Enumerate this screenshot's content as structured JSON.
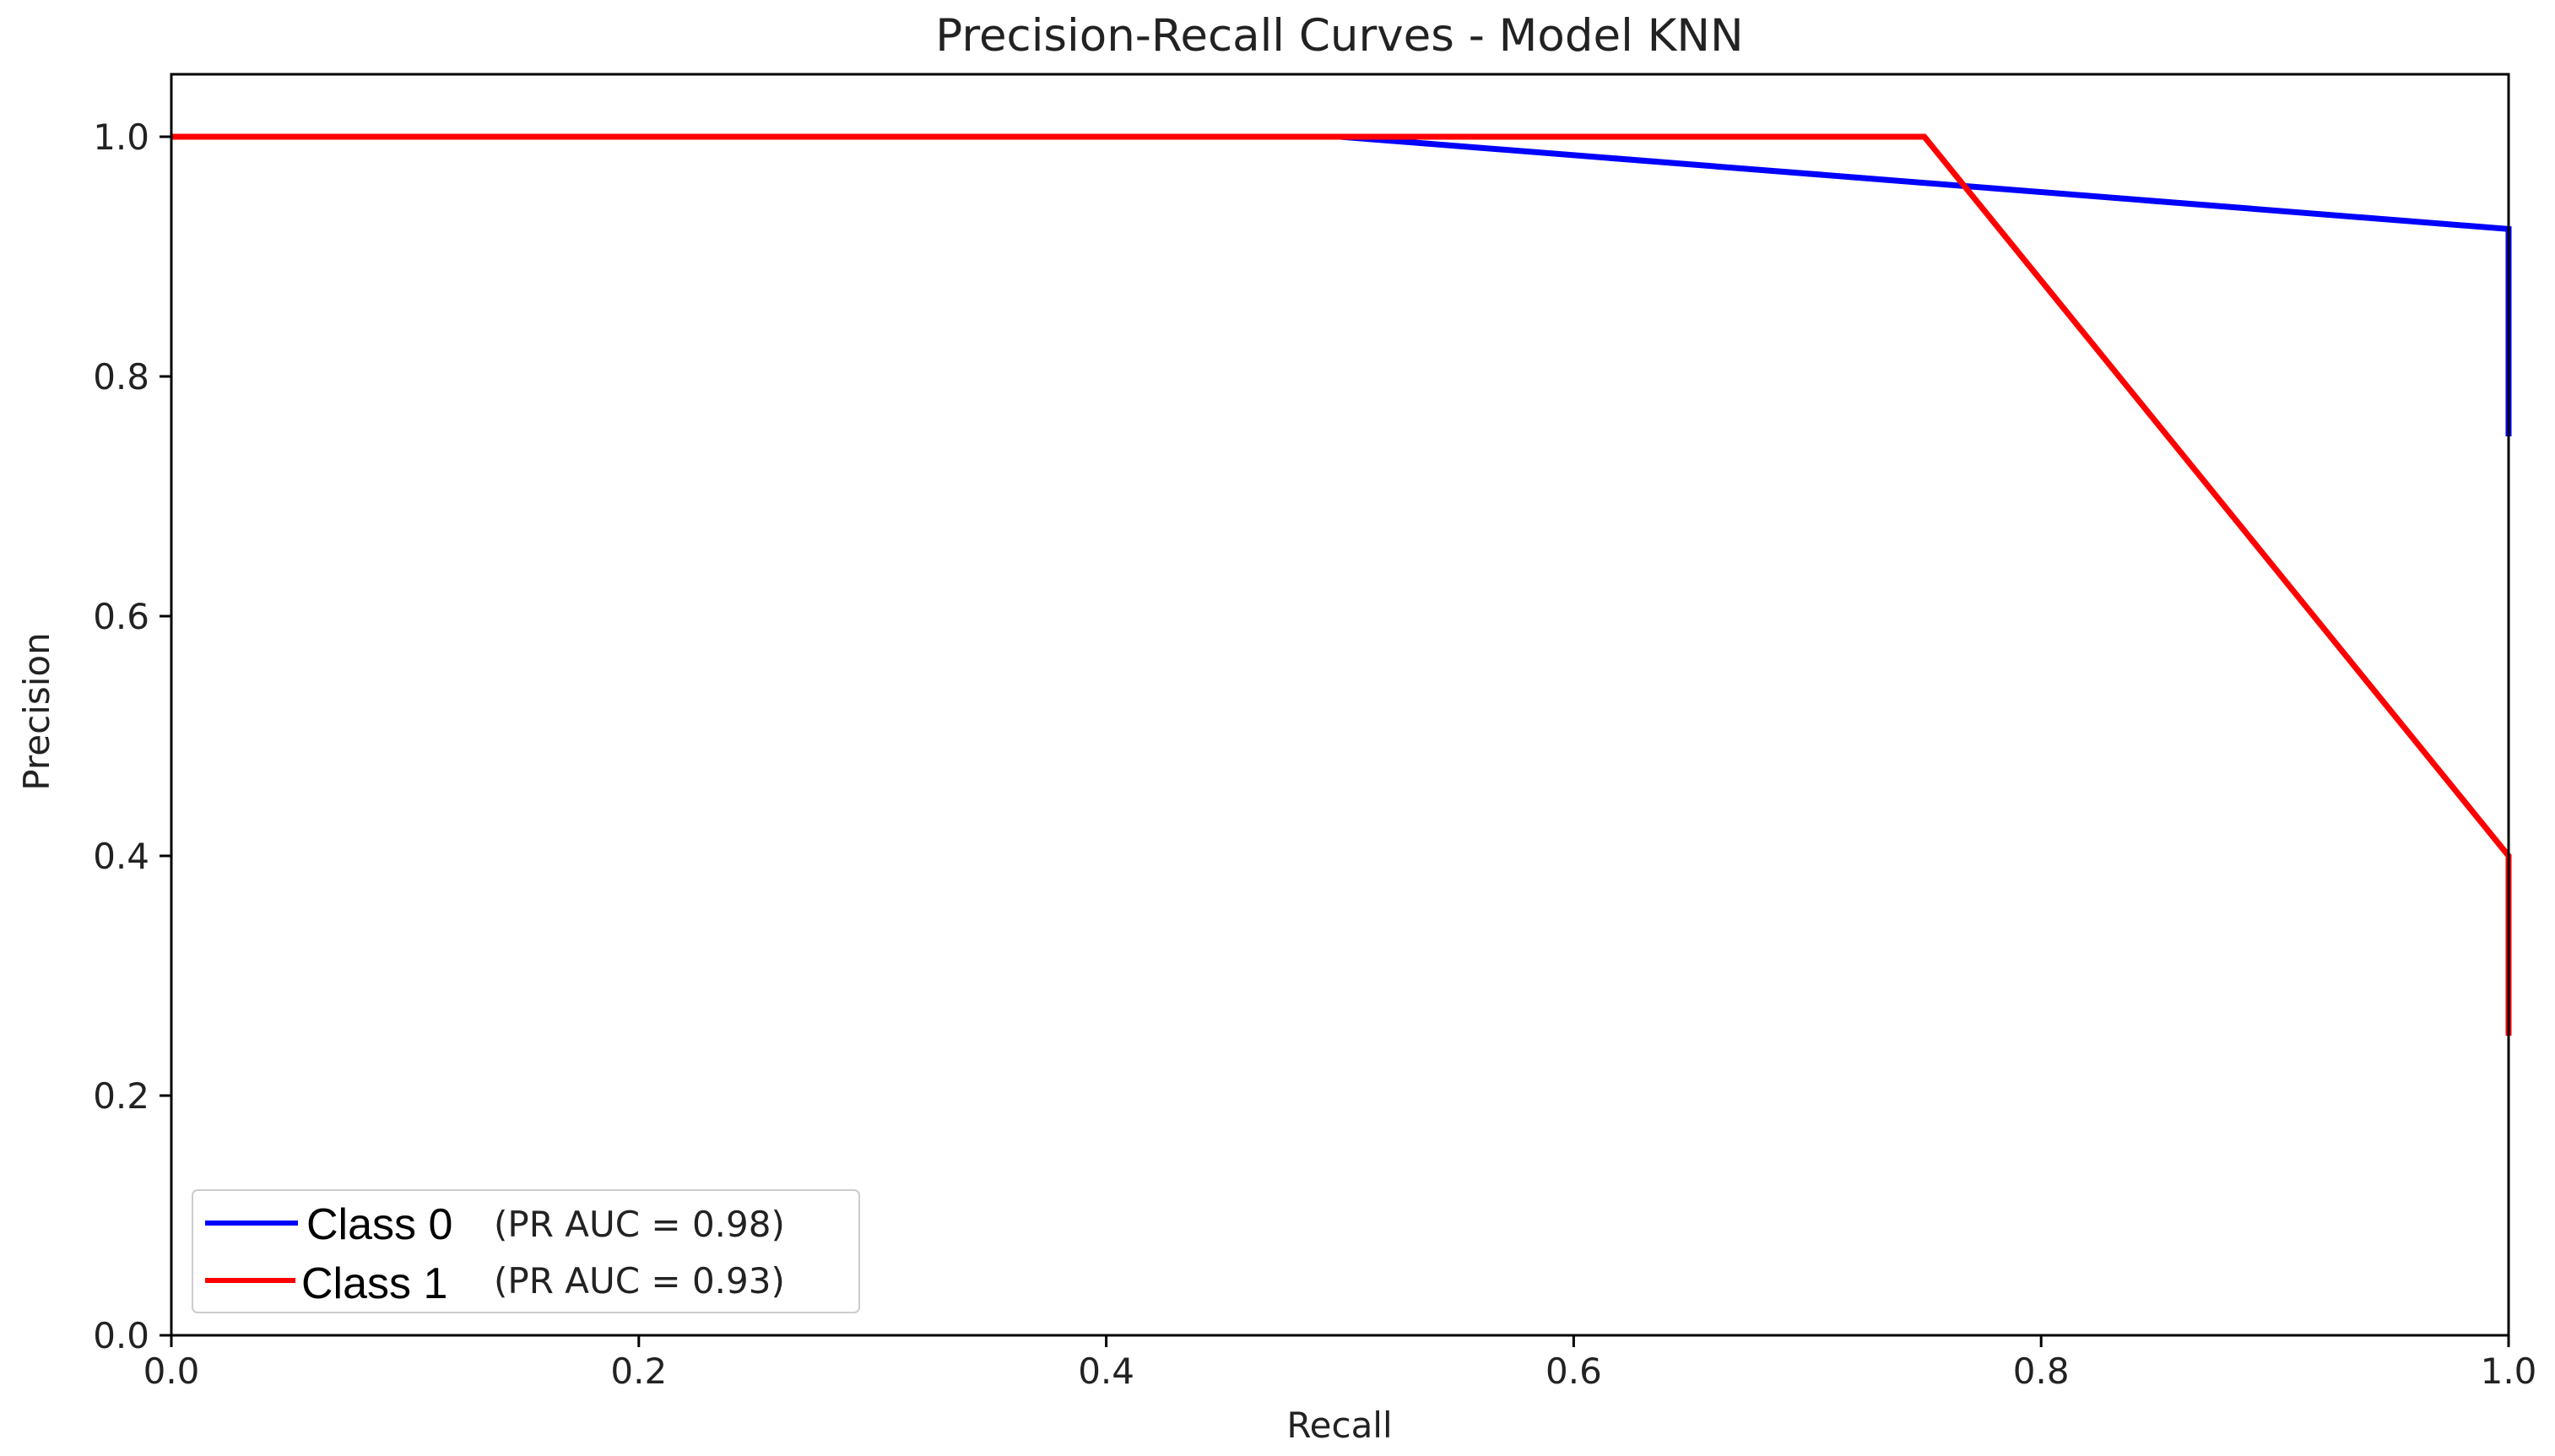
{
  "chart_data": {
    "type": "line",
    "title": "Precision-Recall Curves - Model KNN",
    "xlabel": "Recall",
    "ylabel": "Precision",
    "xlim": [
      0.0,
      1.0
    ],
    "ylim": [
      0.0,
      1.0
    ],
    "xticks": [
      0.0,
      0.2,
      0.4,
      0.6,
      0.8,
      1.0
    ],
    "xtick_labels": [
      "0.0",
      "0.2",
      "0.4",
      "0.6",
      "0.8",
      "1.0"
    ],
    "yticks": [
      0.0,
      0.2,
      0.4,
      0.6,
      0.8,
      1.0
    ],
    "ytick_labels": [
      "0.0",
      "0.2",
      "0.4",
      "0.6",
      "0.8",
      "1.0"
    ],
    "grid": false,
    "legend_position": "bottom-left",
    "series": [
      {
        "name": "Class 0",
        "auc_label": "(PR AUC = 0.98)",
        "color": "#0000ff",
        "x": [
          0.0,
          0.5,
          1.0,
          1.0
        ],
        "y": [
          1.0,
          1.0,
          0.923,
          0.75
        ]
      },
      {
        "name": "Class 1",
        "auc_label": "(PR AUC = 0.93)",
        "color": "#ff0000",
        "x": [
          0.0,
          0.75,
          1.0,
          1.0
        ],
        "y": [
          1.0,
          1.0,
          0.4,
          0.25
        ]
      }
    ]
  }
}
